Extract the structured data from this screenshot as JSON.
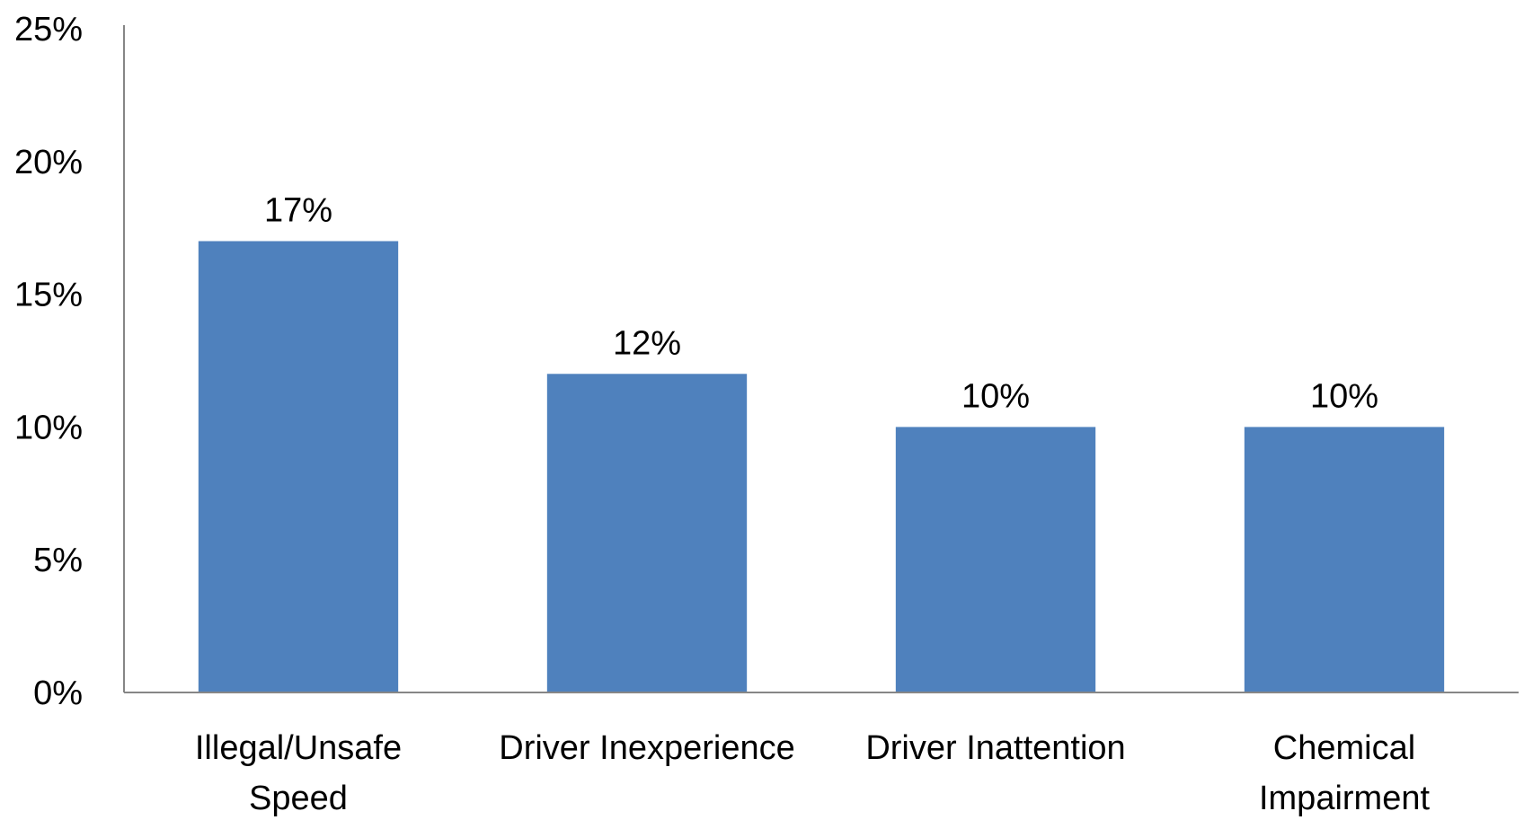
{
  "chart_data": {
    "type": "bar",
    "categories": [
      [
        "Illegal/Unsafe",
        "Speed"
      ],
      [
        "Driver Inexperience"
      ],
      [
        "Driver Inattention"
      ],
      [
        "Chemical",
        "Impairment"
      ]
    ],
    "values": [
      17,
      12,
      10,
      10
    ],
    "data_labels": [
      "17%",
      "12%",
      "10%",
      "10%"
    ],
    "ylim": [
      0,
      25
    ],
    "yticks": [
      0,
      5,
      10,
      15,
      20,
      25
    ],
    "ytick_labels": [
      "0%",
      "5%",
      "10%",
      "15%",
      "20%",
      "25%"
    ],
    "title": "",
    "xlabel": "",
    "ylabel": "",
    "grid": false,
    "legend": "none",
    "bar_color": "#4F81BD"
  }
}
